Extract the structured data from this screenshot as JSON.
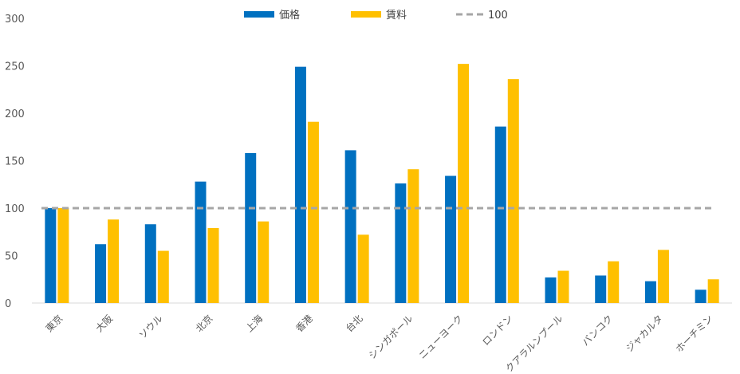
{
  "chart_data": {
    "type": "bar",
    "categories": [
      "東京",
      "大阪",
      "ソウル",
      "北京",
      "上海",
      "香港",
      "台北",
      "シンガポール",
      "ニューヨーク",
      "ロンドン",
      "クアラルンプール",
      "バンコク",
      "ジャカルタ",
      "ホーチミン"
    ],
    "series": [
      {
        "name": "価格",
        "color": "#0070C0",
        "values": [
          100,
          62,
          83,
          128,
          158,
          249,
          161,
          126,
          134,
          186,
          27,
          29,
          23,
          14
        ]
      },
      {
        "name": "賃料",
        "color": "#FFC000",
        "values": [
          100,
          88,
          55,
          79,
          86,
          191,
          72,
          141,
          252,
          236,
          34,
          44,
          56,
          25
        ]
      }
    ],
    "reference_line": {
      "name": "100",
      "value": 100,
      "color": "#A6A6A6",
      "style": "dashed"
    },
    "ylim": [
      0,
      300
    ],
    "yticks": [
      "0",
      "50",
      "100",
      "150",
      "200",
      "250",
      "300"
    ],
    "grid": false,
    "legend_position": "top"
  }
}
